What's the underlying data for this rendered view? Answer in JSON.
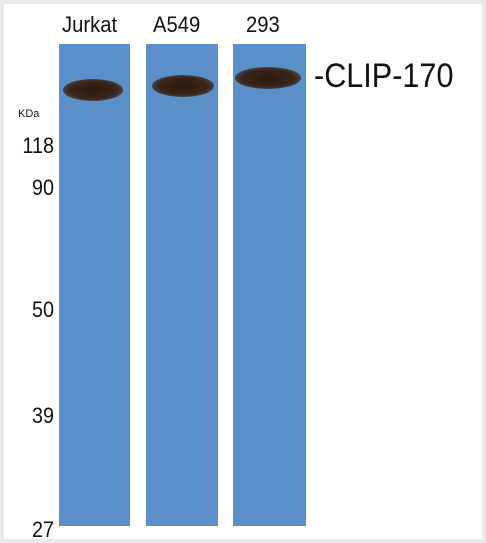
{
  "lanes": [
    {
      "label": "Jurkat"
    },
    {
      "label": "A549"
    },
    {
      "label": "293"
    }
  ],
  "band_label": "-CLIP-170",
  "unit_label": "KDa",
  "markers": [
    "118",
    "90",
    "50",
    "39",
    "27"
  ],
  "colors": {
    "membrane": "#5b8fc7",
    "band": "#2a1a12",
    "background": "#ffffff"
  }
}
